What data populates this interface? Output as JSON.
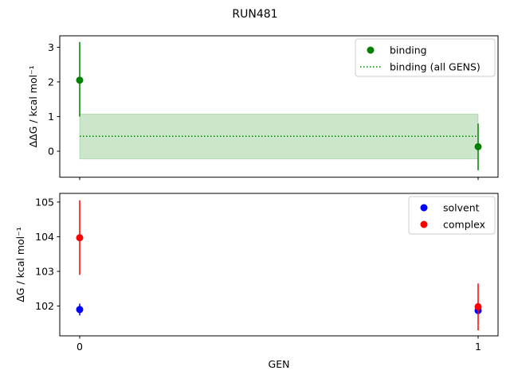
{
  "title": "RUN481",
  "chart_data": [
    {
      "type": "scatter",
      "ylabel": "ΔΔG / kcal mol⁻¹",
      "xlim": [
        -0.05,
        1.05
      ],
      "ylim": [
        -0.75,
        3.33
      ],
      "yticks": [
        0,
        1,
        2,
        3
      ],
      "xticks": [
        0,
        1
      ],
      "legend": "top-right",
      "series": [
        {
          "name": "binding",
          "color": "#008000",
          "x": [
            0,
            1
          ],
          "y": [
            2.05,
            0.13
          ],
          "err_low": [
            1.0,
            -0.55
          ],
          "err_high": [
            3.15,
            0.8
          ]
        }
      ],
      "mean": {
        "name": "binding (all GENS)",
        "color": "#008000",
        "value": 0.43,
        "band": [
          -0.22,
          1.07
        ]
      }
    },
    {
      "type": "scatter",
      "ylabel": "ΔG / kcal mol⁻¹",
      "xlabel": "GEN",
      "xlim": [
        -0.05,
        1.05
      ],
      "ylim": [
        101.14,
        105.25
      ],
      "yticks": [
        102,
        103,
        104,
        105
      ],
      "xticks": [
        0,
        1
      ],
      "xticklabels": [
        "0",
        "1"
      ],
      "legend": "top-right",
      "series": [
        {
          "name": "solvent",
          "color": "#0000ff",
          "x": [
            0,
            1
          ],
          "y": [
            101.9,
            101.87
          ],
          "err_low": [
            101.73,
            101.77
          ],
          "err_high": [
            102.07,
            101.97
          ]
        },
        {
          "name": "complex",
          "color": "#ff0000",
          "x": [
            0,
            1
          ],
          "y": [
            103.97,
            101.98
          ],
          "err_low": [
            102.9,
            101.3
          ],
          "err_high": [
            105.05,
            102.65
          ]
        }
      ]
    }
  ]
}
